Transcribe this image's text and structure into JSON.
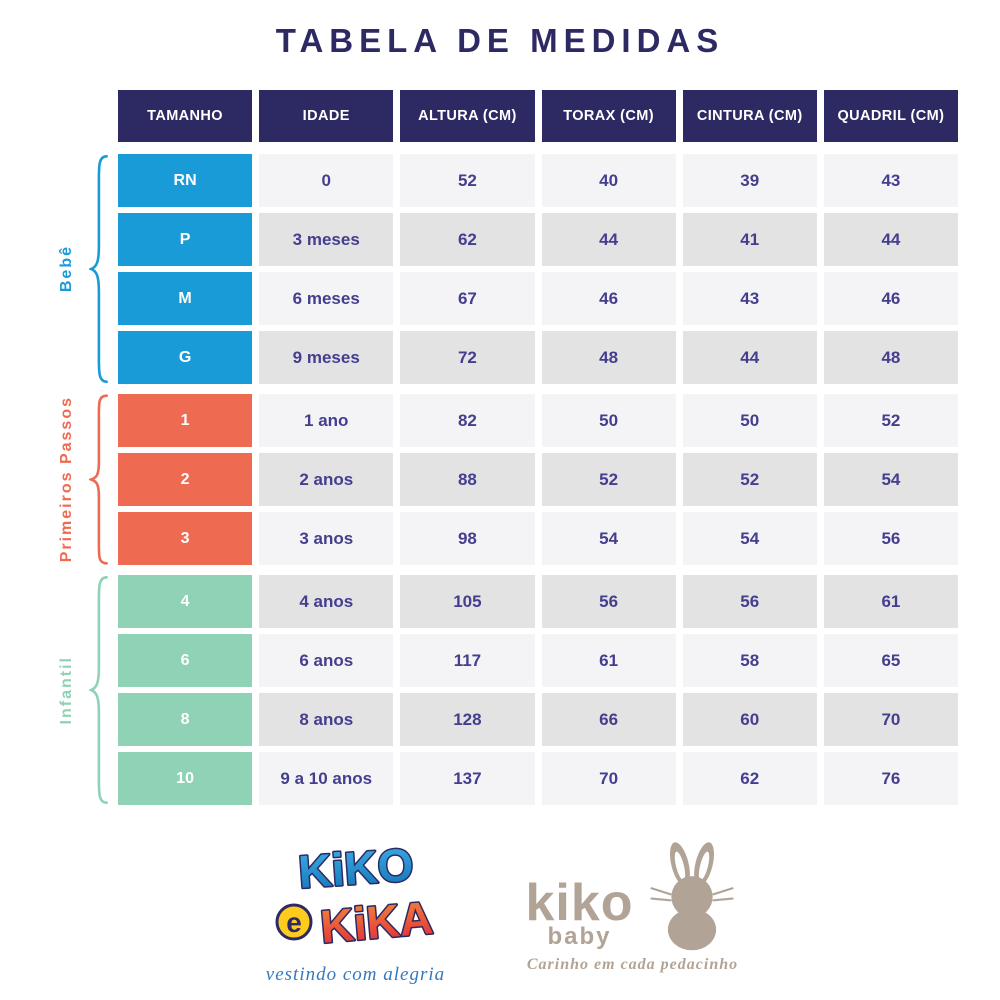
{
  "title": "TABELA DE MEDIDAS",
  "chart_data": {
    "type": "table",
    "title": "TABELA DE MEDIDAS",
    "columns": [
      "TAMANHO",
      "IDADE",
      "ALTURA (CM)",
      "TORAX (CM)",
      "CINTURA (CM)",
      "QUADRIL (CM)"
    ],
    "groups": [
      {
        "label": "Bebê",
        "color": "#189bd7",
        "rows": [
          [
            "RN",
            "0",
            "52",
            "40",
            "39",
            "43"
          ],
          [
            "P",
            "3 meses",
            "62",
            "44",
            "41",
            "44"
          ],
          [
            "M",
            "6 meses",
            "67",
            "46",
            "43",
            "46"
          ],
          [
            "G",
            "9 meses",
            "72",
            "48",
            "44",
            "48"
          ]
        ]
      },
      {
        "label": "Primeiros Passos",
        "color": "#ee6a51",
        "rows": [
          [
            "1",
            "1 ano",
            "82",
            "50",
            "50",
            "52"
          ],
          [
            "2",
            "2 anos",
            "88",
            "52",
            "52",
            "54"
          ],
          [
            "3",
            "3 anos",
            "98",
            "54",
            "54",
            "56"
          ]
        ]
      },
      {
        "label": "Infantil",
        "color": "#8fd2b5",
        "rows": [
          [
            "4",
            "4 anos",
            "105",
            "56",
            "56",
            "61"
          ],
          [
            "6",
            "6 anos",
            "117",
            "61",
            "58",
            "65"
          ],
          [
            "8",
            "8 anos",
            "128",
            "66",
            "60",
            "70"
          ],
          [
            "10",
            "9 a 10 anos",
            "137",
            "70",
            "62",
            "76"
          ]
        ]
      }
    ]
  },
  "footer": {
    "kiko_e_kika": {
      "word1": "KiKO",
      "e": "e",
      "word2": "KiKA",
      "tagline": "vestindo com alegria"
    },
    "kiko_baby": {
      "name": "kiko",
      "sub": "baby",
      "tagline": "Carinho em cada pedacinho"
    }
  },
  "colors": {
    "navy": "#2d2963",
    "cell_text": "#443e8e",
    "row_light": "#f4f4f6",
    "row_dark": "#e3e3e4",
    "blue": "#189bd7",
    "coral": "#ee6a51",
    "mint": "#8fd2b5",
    "taupe": "#b1a496",
    "yellow": "#ffcc1e",
    "script_blue": "#3379bd"
  }
}
